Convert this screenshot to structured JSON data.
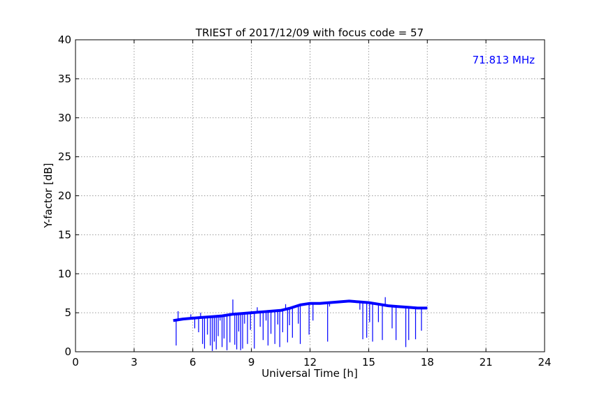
{
  "chart_data": {
    "type": "line",
    "title": "TRIEST of 2017/12/09 with focus code = 57",
    "xlabel": "Universal Time [h]",
    "ylabel": "Y-factor [dB]",
    "xlim": [
      0,
      24
    ],
    "ylim": [
      0,
      40
    ],
    "xticks": [
      0,
      3,
      6,
      9,
      12,
      15,
      18,
      21,
      24
    ],
    "yticks": [
      0,
      5,
      10,
      15,
      20,
      25,
      30,
      35,
      40
    ],
    "grid": true,
    "annotation": {
      "text": "71.813 MHz",
      "color": "#0000ff",
      "position": "top-right"
    },
    "series": [
      {
        "color": "#0000ff",
        "baseline": {
          "x": [
            5.0,
            5.5,
            6.0,
            6.5,
            7.0,
            7.5,
            8.0,
            8.5,
            9.0,
            9.5,
            10.0,
            10.5,
            11.0,
            11.5,
            12.0,
            12.5,
            13.0,
            13.5,
            14.0,
            14.5,
            15.0,
            15.5,
            16.0,
            16.5,
            17.0,
            17.5,
            18.0
          ],
          "y": [
            4.0,
            4.2,
            4.3,
            4.4,
            4.5,
            4.6,
            4.8,
            4.9,
            5.0,
            5.1,
            5.2,
            5.3,
            5.6,
            6.0,
            6.2,
            6.2,
            6.3,
            6.4,
            6.5,
            6.4,
            6.3,
            6.1,
            5.9,
            5.8,
            5.7,
            5.6,
            5.6
          ]
        },
        "spikes": [
          [
            5.15,
            0.8
          ],
          [
            5.25,
            5.2
          ],
          [
            5.9,
            4.8
          ],
          [
            6.1,
            3.0
          ],
          [
            6.3,
            2.5
          ],
          [
            6.4,
            5.0
          ],
          [
            6.5,
            1.0
          ],
          [
            6.6,
            0.4
          ],
          [
            6.75,
            2.2
          ],
          [
            6.9,
            0.8
          ],
          [
            7.0,
            0.1
          ],
          [
            7.1,
            1.3
          ],
          [
            7.2,
            0.3
          ],
          [
            7.3,
            2.0
          ],
          [
            7.4,
            4.0
          ],
          [
            7.5,
            0.6
          ],
          [
            7.6,
            1.7
          ],
          [
            7.75,
            0.2
          ],
          [
            7.9,
            1.2
          ],
          [
            8.05,
            6.7
          ],
          [
            8.15,
            0.9
          ],
          [
            8.25,
            0.3
          ],
          [
            8.35,
            2.6
          ],
          [
            8.45,
            0.2
          ],
          [
            8.55,
            0.4
          ],
          [
            8.65,
            3.6
          ],
          [
            8.8,
            1.0
          ],
          [
            8.95,
            2.8
          ],
          [
            9.15,
            0.4
          ],
          [
            9.3,
            5.7
          ],
          [
            9.45,
            3.2
          ],
          [
            9.6,
            1.5
          ],
          [
            9.75,
            4.0
          ],
          [
            9.85,
            0.8
          ],
          [
            10.0,
            2.3
          ],
          [
            10.2,
            1.0
          ],
          [
            10.35,
            3.5
          ],
          [
            10.45,
            0.6
          ],
          [
            10.6,
            2.5
          ],
          [
            10.75,
            6.1
          ],
          [
            10.85,
            1.2
          ],
          [
            10.95,
            3.4
          ],
          [
            11.1,
            1.8
          ],
          [
            11.4,
            3.6
          ],
          [
            11.5,
            1.0
          ],
          [
            11.95,
            2.2
          ],
          [
            12.15,
            4.0
          ],
          [
            12.9,
            1.3
          ],
          [
            13.0,
            5.8
          ],
          [
            14.55,
            5.4
          ],
          [
            14.7,
            1.6
          ],
          [
            14.9,
            1.8
          ],
          [
            15.05,
            3.8
          ],
          [
            15.2,
            1.3
          ],
          [
            15.5,
            3.8
          ],
          [
            15.7,
            1.5
          ],
          [
            15.85,
            7.0
          ],
          [
            16.2,
            3.0
          ],
          [
            16.4,
            1.5
          ],
          [
            16.9,
            0.6
          ],
          [
            17.05,
            1.5
          ],
          [
            17.4,
            1.6
          ],
          [
            17.7,
            2.7
          ]
        ]
      }
    ]
  }
}
